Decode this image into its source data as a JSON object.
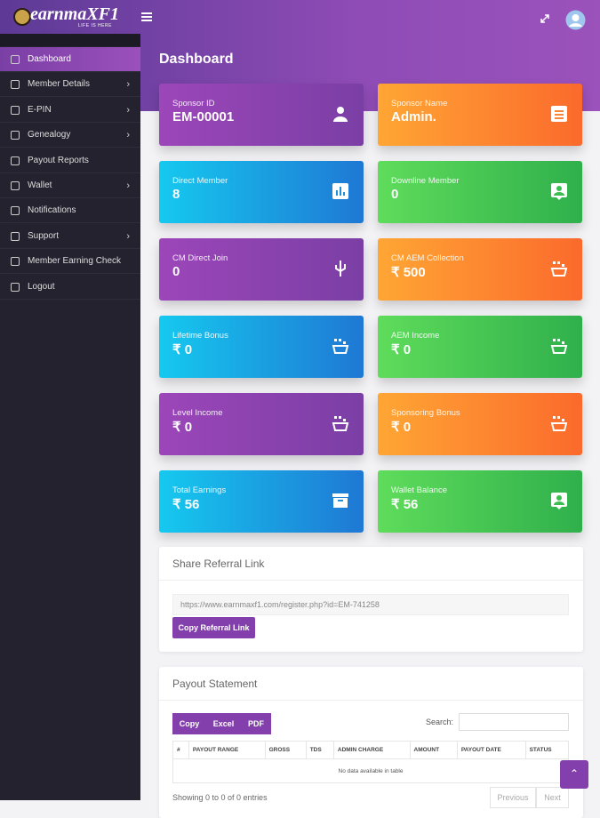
{
  "header": {
    "logo": "earnmaXF1",
    "tagline": "LIFE IS HERE"
  },
  "sidebar": {
    "menu": [
      "Dashboard",
      "Member Details",
      "E-PIN",
      "Genealogy",
      "Payout Reports",
      "Wallet",
      "Notifications",
      "Support",
      "Member Earning Check",
      "Logout"
    ]
  },
  "page_title": "Dashboard",
  "cards": [
    {
      "label": "Sponsor ID",
      "value": "EM-00001"
    },
    {
      "label": "Sponsor Name",
      "value": "Admin."
    },
    {
      "label": "Direct Member",
      "value": "8"
    },
    {
      "label": "Downline Member",
      "value": "0"
    },
    {
      "label": "CM Direct Join",
      "value": "0"
    },
    {
      "label": "CM AEM Collection",
      "value": "₹ 500"
    },
    {
      "label": "Lifetime Bonus",
      "value": "₹ 0"
    },
    {
      "label": "AEM Income",
      "value": "₹ 0"
    },
    {
      "label": "Level Income",
      "value": "₹ 0"
    },
    {
      "label": "Sponsoring Bonus",
      "value": "₹ 0"
    },
    {
      "label": "Total Earnings",
      "value": "₹ 56"
    },
    {
      "label": "Wallet Balance",
      "value": "₹ 56"
    }
  ],
  "referral": {
    "title": "Share Referral Link",
    "link": "https://www.earnmaxf1.com/register.php?id=EM-741258",
    "button": "Copy Referral Link"
  },
  "payout": {
    "title": "Payout Statement",
    "buttons": [
      "Copy",
      "Excel",
      "PDF"
    ],
    "search_label": "Search:",
    "columns": [
      "#",
      "PAYOUT RANGE",
      "GROSS",
      "TDS",
      "ADMIN CHARGE",
      "AMOUNT",
      "PAYOUT DATE",
      "STATUS"
    ],
    "empty": "No data available in table",
    "info": "Showing 0 to 0 of 0 entries",
    "pagination": [
      "Previous",
      "Next"
    ]
  }
}
